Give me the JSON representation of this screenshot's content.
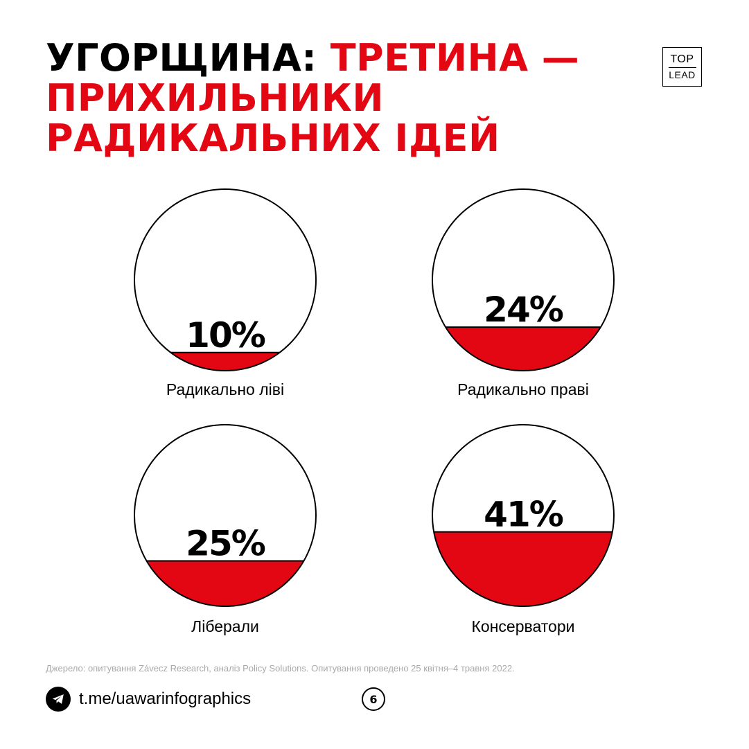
{
  "header": {
    "title_black": "УГОРЩИНА: ",
    "title_red": "ТРЕТИНА — ПРИХИЛЬНИКИ РАДИКАЛЬНИХ ІДЕЙ"
  },
  "logo": {
    "top": "TOP",
    "bottom": "LEAD"
  },
  "colors": {
    "accent": "#e30613",
    "text": "#000000",
    "muted": "#a9a9a9"
  },
  "chart_data": {
    "type": "bar",
    "categories": [
      "Радикально ліві",
      "Радикально праві",
      "Ліберали",
      "Консерватори"
    ],
    "values": [
      10,
      24,
      25,
      41
    ],
    "value_labels": [
      "10%",
      "24%",
      "25%",
      "41%"
    ],
    "unit": "%",
    "ylim": [
      0,
      100
    ],
    "style": "circle-fill"
  },
  "footer": {
    "source": "Джерело: опитування Závecz Research, аналіз Policy Solutions. Опитування проведено 25 квітня–4 травня 2022.",
    "link": "t.me/uawarinfographics",
    "link_icon": "telegram-icon",
    "page_number": "6"
  }
}
